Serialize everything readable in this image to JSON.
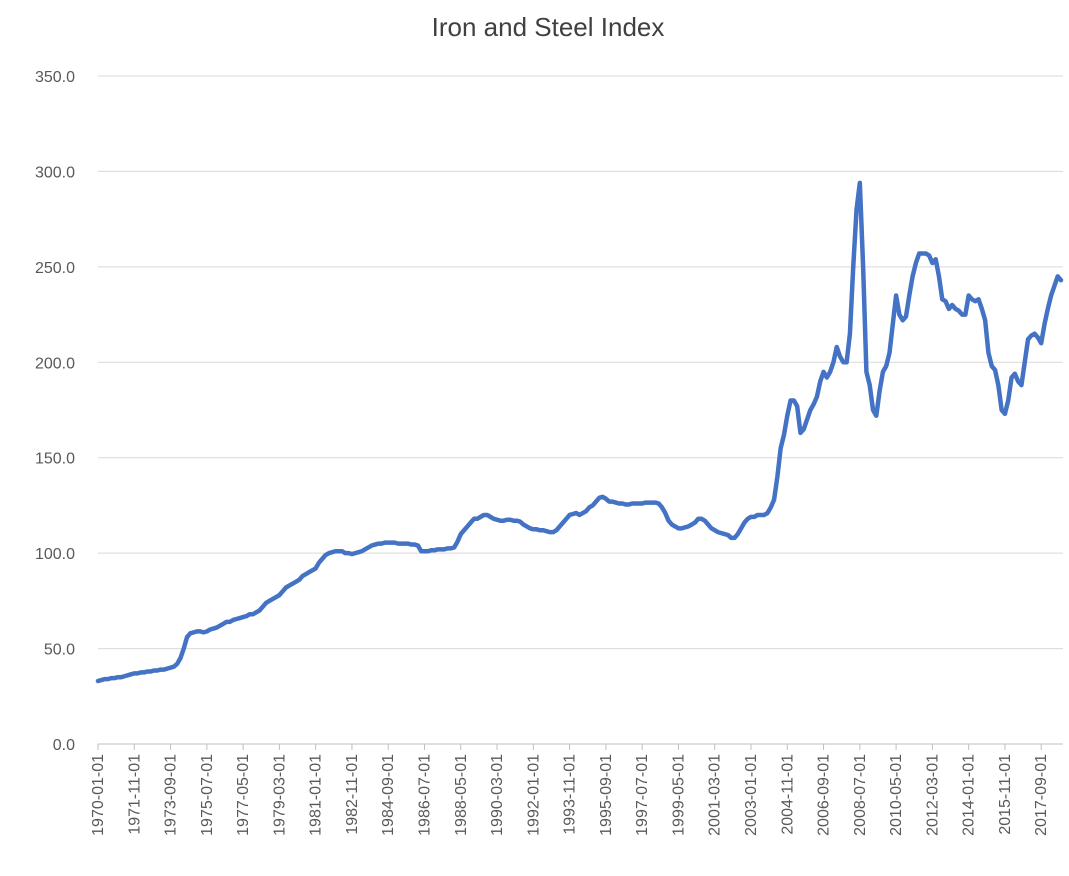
{
  "chart_data": {
    "type": "line",
    "title": "Iron and Steel Index",
    "categories": [
      "1970-01-01",
      null,
      null,
      null,
      null,
      null,
      null,
      null,
      null,
      null,
      null,
      "1971-11-01",
      null,
      null,
      null,
      null,
      null,
      null,
      null,
      null,
      null,
      null,
      "1973-09-01",
      null,
      null,
      null,
      null,
      null,
      null,
      null,
      null,
      null,
      null,
      "1975-07-01",
      null,
      null,
      null,
      null,
      null,
      null,
      null,
      null,
      null,
      null,
      "1977-05-01",
      null,
      null,
      null,
      null,
      null,
      null,
      null,
      null,
      null,
      null,
      "1979-03-01",
      null,
      null,
      null,
      null,
      null,
      null,
      null,
      null,
      null,
      null,
      "1981-01-01",
      null,
      null,
      null,
      null,
      null,
      null,
      null,
      null,
      null,
      null,
      "1982-11-01",
      null,
      null,
      null,
      null,
      null,
      null,
      null,
      null,
      null,
      null,
      "1984-09-01",
      null,
      null,
      null,
      null,
      null,
      null,
      null,
      null,
      null,
      null,
      "1986-07-01",
      null,
      null,
      null,
      null,
      null,
      null,
      null,
      null,
      null,
      null,
      "1988-05-01",
      null,
      null,
      null,
      null,
      null,
      null,
      null,
      null,
      null,
      null,
      "1990-03-01",
      null,
      null,
      null,
      null,
      null,
      null,
      null,
      null,
      null,
      null,
      "1992-01-01",
      null,
      null,
      null,
      null,
      null,
      null,
      null,
      null,
      null,
      null,
      "1993-11-01",
      null,
      null,
      null,
      null,
      null,
      null,
      null,
      null,
      null,
      null,
      "1995-09-01",
      null,
      null,
      null,
      null,
      null,
      null,
      null,
      null,
      null,
      null,
      "1997-07-01",
      null,
      null,
      null,
      null,
      null,
      null,
      null,
      null,
      null,
      null,
      "1999-05-01",
      null,
      null,
      null,
      null,
      null,
      null,
      null,
      null,
      null,
      null,
      "2001-03-01",
      null,
      null,
      null,
      null,
      null,
      null,
      null,
      null,
      null,
      null,
      "2003-01-01",
      null,
      null,
      null,
      null,
      null,
      null,
      null,
      null,
      null,
      null,
      "2004-11-01",
      null,
      null,
      null,
      null,
      null,
      null,
      null,
      null,
      null,
      null,
      "2006-09-01",
      null,
      null,
      null,
      null,
      null,
      null,
      null,
      null,
      null,
      null,
      "2008-07-01",
      null,
      null,
      null,
      null,
      null,
      null,
      null,
      null,
      null,
      null,
      "2010-05-01",
      null,
      null,
      null,
      null,
      null,
      null,
      null,
      null,
      null,
      null,
      "2012-03-01",
      null,
      null,
      null,
      null,
      null,
      null,
      null,
      null,
      null,
      null,
      "2014-01-01",
      null,
      null,
      null,
      null,
      null,
      null,
      null,
      null,
      null,
      null,
      "2015-11-01",
      null,
      null,
      null,
      null,
      null,
      null,
      null,
      null,
      null,
      null,
      "2017-09-01",
      null,
      null,
      null,
      null,
      null,
      null
    ],
    "series": [
      {
        "color": "#4472c4",
        "values": [
          33,
          33.5,
          34,
          34,
          34.5,
          34.5,
          35,
          35,
          35.5,
          36,
          36.5,
          37,
          37,
          37.5,
          37.5,
          38,
          38,
          38.5,
          38.5,
          39,
          39,
          39.5,
          40,
          40.5,
          42,
          45,
          50,
          56,
          58,
          58.5,
          59,
          59,
          58.5,
          59,
          60,
          60.5,
          61,
          62,
          63,
          64,
          64,
          65,
          65.5,
          66,
          66.5,
          67,
          68,
          68,
          69,
          70,
          72,
          74,
          75,
          76,
          77,
          78,
          80,
          82,
          83,
          84,
          85,
          86,
          88,
          89,
          90,
          91,
          92,
          95,
          97,
          99,
          100,
          100.5,
          101,
          101,
          101,
          100,
          100,
          99.5,
          100,
          100.5,
          101,
          102,
          103,
          104,
          104.5,
          105,
          105,
          105.5,
          105.5,
          105.5,
          105.5,
          105,
          105,
          105,
          105,
          104.5,
          104.5,
          104,
          101,
          101,
          101,
          101.5,
          101.5,
          102,
          102,
          102,
          102.5,
          102.5,
          103,
          106,
          110,
          112,
          114,
          116,
          118,
          118,
          119,
          120,
          120,
          119,
          118,
          117.5,
          117,
          117,
          117.5,
          117.5,
          117,
          117,
          116.5,
          115,
          114,
          113,
          112.5,
          112.5,
          112,
          112,
          111.5,
          111,
          111,
          112,
          114,
          116,
          118,
          120,
          120.5,
          121,
          120,
          121,
          122,
          124,
          125,
          127,
          129,
          129.5,
          128.5,
          127,
          127,
          126.5,
          126,
          126,
          125.5,
          125.5,
          126,
          126,
          126,
          126,
          126.5,
          126.5,
          126.5,
          126.5,
          126,
          124,
          121,
          117,
          115,
          114,
          113,
          113,
          113.5,
          114,
          115,
          116,
          118,
          118,
          117,
          115,
          113,
          112,
          111,
          110.5,
          110,
          109.5,
          108,
          108,
          110,
          113,
          116,
          118,
          119,
          119,
          120,
          120,
          120,
          121,
          124,
          128,
          140,
          155,
          162,
          172,
          180,
          180,
          177,
          163,
          165,
          170,
          175,
          178,
          182,
          190,
          195,
          192,
          195,
          200,
          208,
          203,
          200,
          200,
          215,
          250,
          280,
          294,
          250,
          195,
          188,
          175,
          172,
          185,
          195,
          198,
          205,
          220,
          235,
          225,
          222,
          224,
          235,
          245,
          252,
          257,
          257,
          257,
          256,
          252,
          254,
          245,
          233,
          232,
          228,
          230,
          228,
          227,
          225,
          225,
          235,
          233,
          232,
          233,
          228,
          222,
          205,
          198,
          196,
          188,
          175,
          173,
          180,
          192,
          194,
          190,
          188,
          200,
          212,
          214,
          215,
          213,
          210,
          220,
          228,
          235,
          240,
          245,
          243
        ]
      }
    ],
    "ylim": [
      0,
      350
    ],
    "yticks": [
      {
        "value": 0,
        "label": "0.0"
      },
      {
        "value": 50,
        "label": "50.0"
      },
      {
        "value": 100,
        "label": "100.0"
      },
      {
        "value": 150,
        "label": "150.0"
      },
      {
        "value": 200,
        "label": "200.0"
      },
      {
        "value": 250,
        "label": "250.0"
      },
      {
        "value": 300,
        "label": "300.0"
      },
      {
        "value": 350,
        "label": "350.0"
      }
    ],
    "grid": true
  }
}
